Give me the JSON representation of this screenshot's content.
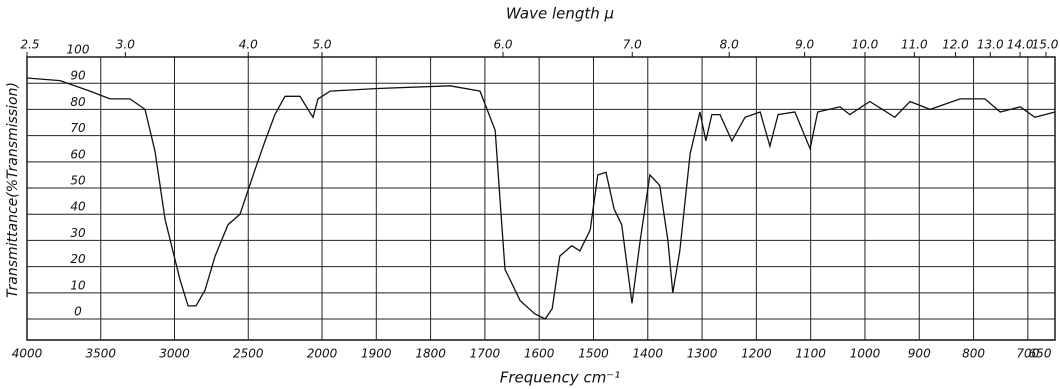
{
  "chart_data": {
    "type": "line",
    "title": "Wave length μ",
    "xlabel": "Frequency cm⁻¹",
    "ylabel": "Transmittance(%Transmission)",
    "x": [
      4000,
      3776,
      3573,
      3437,
      3302,
      3200,
      3132,
      3064,
      2963,
      2908,
      2854,
      2793,
      2725,
      2637,
      2556,
      2454,
      2386,
      2319,
      2251,
      2149,
      2095,
      2061,
      2027,
      1985,
      1893,
      1764,
      1709,
      1681,
      1672,
      1663,
      1635,
      1608,
      1589,
      1576,
      1562,
      1540,
      1525,
      1506,
      1492,
      1477,
      1462,
      1448,
      1429,
      1414,
      1396,
      1378,
      1363,
      1354,
      1341,
      1322,
      1304,
      1293,
      1282,
      1267,
      1245,
      1221,
      1193,
      1175,
      1160,
      1129,
      1101,
      1087,
      1046,
      1028,
      991,
      945,
      917,
      880,
      825,
      779,
      751,
      714,
      687,
      650
    ],
    "series": [
      {
        "color": "#111111",
        "values": [
          92,
          91,
          87,
          84,
          84,
          80,
          64,
          38,
          15,
          5,
          5,
          11,
          24,
          36,
          40,
          57,
          68,
          78,
          85,
          85,
          80,
          77,
          84,
          87,
          88,
          89,
          87,
          72,
          45,
          19,
          7,
          2,
          0,
          4,
          24,
          28,
          26,
          34,
          55,
          56,
          42,
          36,
          6,
          30,
          55,
          51,
          30,
          10,
          26,
          63,
          79,
          68,
          78,
          78,
          68,
          77,
          79,
          66,
          78,
          79,
          65,
          79,
          81,
          78,
          83,
          77,
          83,
          80,
          84,
          84,
          79,
          81,
          77,
          79
        ]
      }
    ],
    "xlim": [
      4000,
      650
    ],
    "x_scale_break": 2000,
    "xticks": [
      4000,
      3500,
      3000,
      2500,
      2000,
      1900,
      1800,
      1700,
      1600,
      1500,
      1400,
      1300,
      1200,
      1100,
      1000,
      900,
      800,
      700,
      650
    ],
    "x2ticks": [
      2.5,
      {
        "value": 3,
        "label": "3.0"
      },
      {
        "value": 4,
        "label": "4.0"
      },
      {
        "value": 5,
        "label": "5.0"
      },
      {
        "value": 6,
        "label": "6.0"
      },
      {
        "value": 7,
        "label": "7.0"
      },
      {
        "value": 8,
        "label": "8.0"
      },
      {
        "value": 9,
        "label": "9.0"
      },
      {
        "value": 10,
        "label": "10.0"
      },
      {
        "value": 11,
        "label": "11.0"
      },
      {
        "value": 12,
        "label": "12.0"
      },
      {
        "value": 13,
        "label": "13.0"
      },
      {
        "value": 14,
        "label": "14.0"
      },
      {
        "value": 15,
        "label": "15.0"
      }
    ],
    "ylim": [
      -8,
      100
    ],
    "yticks": [
      0,
      10,
      20,
      30,
      40,
      50,
      60,
      70,
      80,
      90,
      100
    ],
    "grid": true
  }
}
